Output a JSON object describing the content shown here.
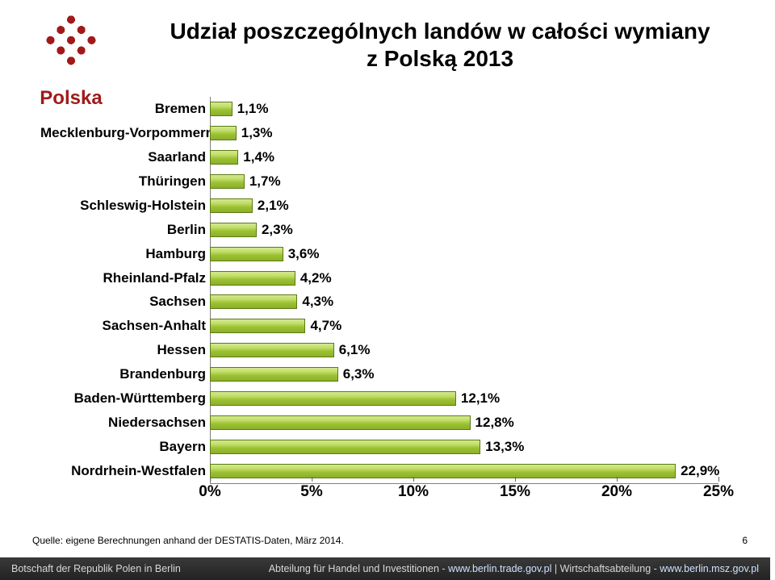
{
  "logo_word": "Polska",
  "title_line1": "Udział poszczególnych landów w całości  wymiany",
  "title_line2": "z Polską 2013",
  "chart": {
    "type": "bar-horizontal",
    "x_min": 0,
    "x_max": 25,
    "x_tick_step": 5,
    "x_tick_suffix": "%",
    "bar_gradient_top": "#d4e890",
    "bar_gradient_mid": "#9bc033",
    "bar_border": "#5a7c13",
    "background_color": "#ffffff",
    "label_fontsize_pt": 13,
    "axis_fontsize_pt": 15,
    "bars": [
      {
        "category": "Bremen",
        "value": 1.1,
        "label": "1,1%"
      },
      {
        "category": "Mecklenburg-Vorpommern",
        "value": 1.3,
        "label": "1,3%"
      },
      {
        "category": "Saarland",
        "value": 1.4,
        "label": "1,4%"
      },
      {
        "category": "Thüringen",
        "value": 1.7,
        "label": "1,7%"
      },
      {
        "category": "Schleswig-Holstein",
        "value": 2.1,
        "label": "2,1%"
      },
      {
        "category": "Berlin",
        "value": 2.3,
        "label": "2,3%"
      },
      {
        "category": "Hamburg",
        "value": 3.6,
        "label": "3,6%"
      },
      {
        "category": "Rheinland-Pfalz",
        "value": 4.2,
        "label": "4,2%"
      },
      {
        "category": "Sachsen",
        "value": 4.3,
        "label": "4,3%"
      },
      {
        "category": "Sachsen-Anhalt",
        "value": 4.7,
        "label": "4,7%"
      },
      {
        "category": "Hessen",
        "value": 6.1,
        "label": "6,1%"
      },
      {
        "category": "Brandenburg",
        "value": 6.3,
        "label": "6,3%"
      },
      {
        "category": "Baden-Württemberg",
        "value": 12.1,
        "label": "12,1%"
      },
      {
        "category": "Niedersachsen",
        "value": 12.8,
        "label": "12,8%"
      },
      {
        "category": "Bayern",
        "value": 13.3,
        "label": "13,3%"
      },
      {
        "category": "Nordrhein-Westfalen",
        "value": 22.9,
        "label": "22,9%"
      }
    ]
  },
  "source": "Quelle: eigene Berechnungen anhand der DESTATIS-Daten, März 2014.",
  "page_number": "6",
  "footer_left": "Botschaft der Republik Polen in Berlin",
  "footer_right_1": "Abteilung für Handel und Investitionen -",
  "footer_right_2": "www.berlin.trade.gov.pl",
  "footer_right_3": "  |  Wirtschaftsabteilung  -  ",
  "footer_right_4": "www.berlin.msz.gov.pl"
}
